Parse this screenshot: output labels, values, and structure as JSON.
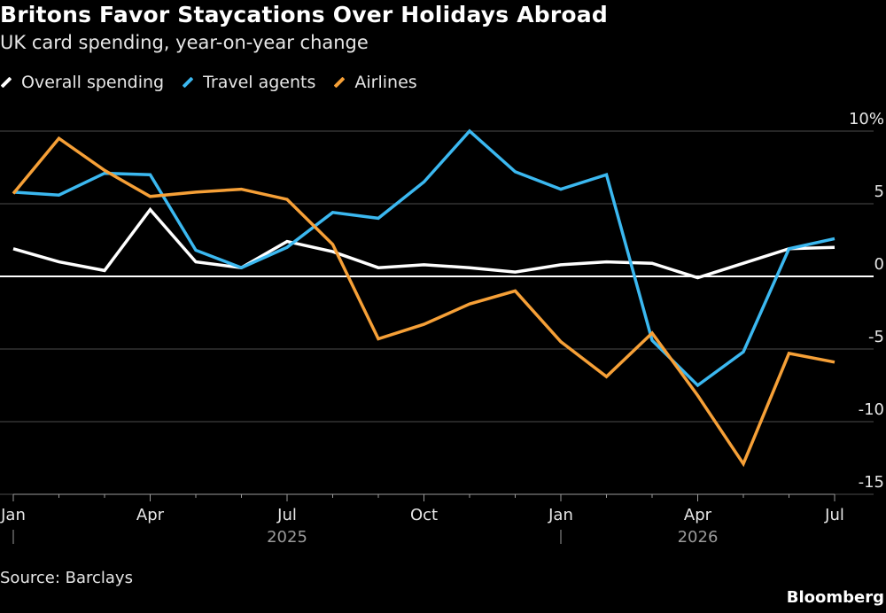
{
  "header": {
    "title": "Britons Favor Staycations Over Holidays Abroad",
    "subtitle": "UK card spending, year-on-year change"
  },
  "footer": {
    "source": "Source: Barclays",
    "brand": "Bloomberg"
  },
  "colors": {
    "background": "#000000",
    "overall": "#ffffff",
    "travel_agents": "#3bb8f0",
    "airlines": "#f6a037",
    "grid": "#4d4d4d"
  },
  "chart_data": {
    "type": "line",
    "x": [
      "2025-01",
      "2025-02",
      "2025-03",
      "2025-04",
      "2025-05",
      "2025-06",
      "2025-07",
      "2025-08",
      "2025-09",
      "2025-10",
      "2025-11",
      "2025-12",
      "2026-01",
      "2026-02",
      "2026-03",
      "2026-04",
      "2026-05",
      "2026-06",
      "2026-07"
    ],
    "series": [
      {
        "name": "Overall spending",
        "color": "#ffffff",
        "values": [
          1.9,
          1.0,
          0.4,
          4.6,
          1.0,
          0.6,
          2.4,
          1.7,
          0.6,
          0.8,
          0.6,
          0.3,
          0.8,
          1.0,
          0.9,
          -0.1,
          0.9,
          1.9,
          2.0
        ]
      },
      {
        "name": "Travel agents",
        "color": "#3bb8f0",
        "values": [
          5.8,
          5.6,
          7.1,
          7.0,
          1.8,
          0.6,
          2.0,
          4.4,
          4.0,
          6.5,
          10.0,
          7.2,
          6.0,
          7.0,
          -4.4,
          -7.5,
          -5.2,
          1.9,
          2.6
        ]
      },
      {
        "name": "Airlines",
        "color": "#f6a037",
        "values": [
          5.7,
          9.5,
          7.3,
          5.5,
          5.8,
          6.0,
          5.3,
          2.2,
          -4.3,
          -3.3,
          -1.9,
          -1.0,
          -4.5,
          -6.9,
          -3.9,
          -8.2,
          -12.9,
          -5.3,
          -5.9
        ]
      }
    ],
    "xticks": [
      {
        "label": "Jan",
        "index": 0
      },
      {
        "label": "Apr",
        "index": 3
      },
      {
        "label": "Jul",
        "index": 6
      },
      {
        "label": "Oct",
        "index": 9
      },
      {
        "label": "Jan",
        "index": 12
      },
      {
        "label": "Apr",
        "index": 15
      },
      {
        "label": "Jul",
        "index": 18
      }
    ],
    "years": [
      {
        "label": "2025",
        "index": 6
      },
      {
        "label": "2026",
        "index": 15
      }
    ],
    "year_separators": [
      0,
      12
    ],
    "yticks": [
      {
        "value": 10,
        "label": "10%"
      },
      {
        "value": 5,
        "label": "5"
      },
      {
        "value": 0,
        "label": "0"
      },
      {
        "value": -5,
        "label": "-5"
      },
      {
        "value": -10,
        "label": "-10"
      },
      {
        "value": -15,
        "label": "-15"
      }
    ],
    "ylim": [
      -15,
      10
    ],
    "xlabel": "",
    "ylabel": "",
    "grid": true,
    "legend_position": "top-left"
  }
}
